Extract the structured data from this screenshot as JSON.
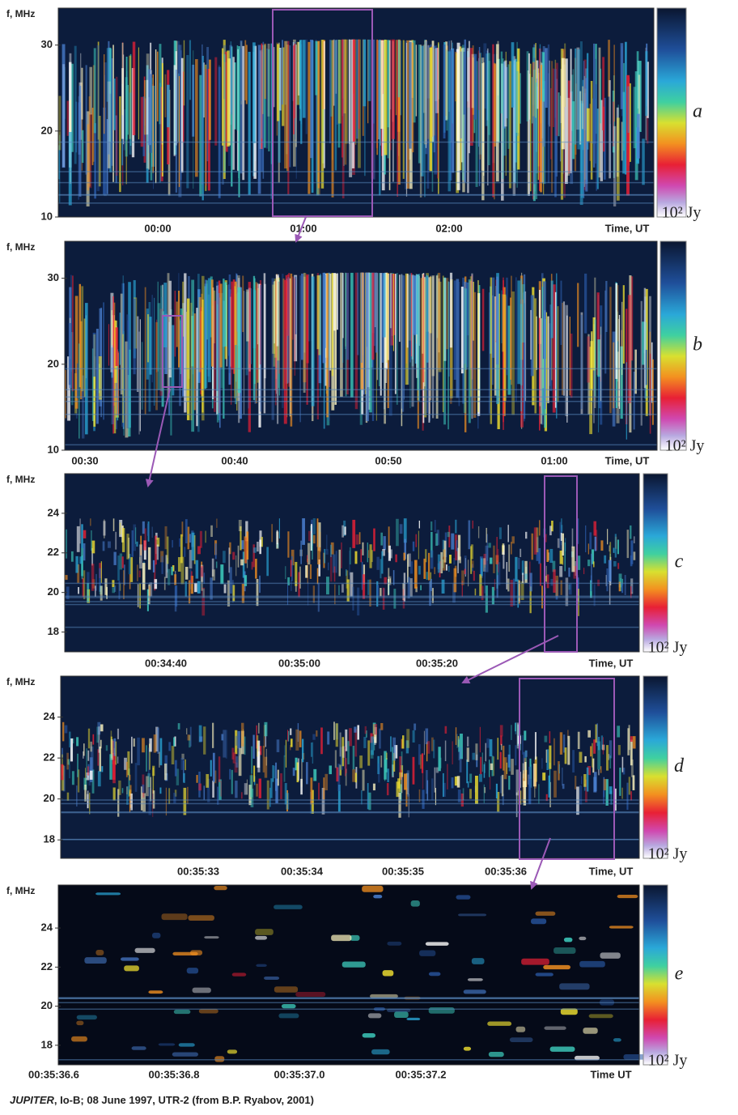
{
  "chart_data": [
    {
      "type": "spectrogram",
      "panel_label": "a",
      "y_label": "f, MHz",
      "ylim": [
        10,
        34.3
      ],
      "yticks": [
        10,
        20,
        30
      ],
      "xticks": [
        "00:00",
        "01:00",
        "02:00"
      ],
      "x_label": "Time, UT",
      "colorbar_label": "10² Jy"
    },
    {
      "type": "spectrogram",
      "panel_label": "b",
      "y_label": "f, MHz",
      "ylim": [
        10,
        34.3
      ],
      "yticks": [
        10,
        20,
        30
      ],
      "xticks": [
        "00:30",
        "00:40",
        "00:50",
        "01:00"
      ],
      "x_label": "Time, UT",
      "colorbar_label": "10² Jy"
    },
    {
      "type": "spectrogram",
      "panel_label": "c",
      "y_label": "f, MHz",
      "ylim": [
        17,
        26
      ],
      "yticks": [
        18,
        20,
        22,
        24
      ],
      "xticks": [
        "00:34:40",
        "00:35:00",
        "00:35:20"
      ],
      "x_label": "Time, UT",
      "colorbar_label": "10² Jy"
    },
    {
      "type": "spectrogram",
      "panel_label": "d",
      "y_label": "f, MHz",
      "ylim": [
        17.1,
        26
      ],
      "yticks": [
        18,
        20,
        22,
        24
      ],
      "xticks": [
        "00:35:33",
        "00:35:34",
        "00:35:35",
        "00:35:36"
      ],
      "x_label": "Time, UT",
      "colorbar_label": "10² Jy"
    },
    {
      "type": "spectrogram",
      "panel_label": "e",
      "y_label": "f, MHz",
      "ylim": [
        17,
        26.2
      ],
      "yticks": [
        18,
        20,
        22,
        24
      ],
      "xticks": [
        "00:35:36.6",
        "00:35:36.8",
        "00:35:37.0",
        "00:35:37.2"
      ],
      "x_label": "Time UT",
      "colorbar_label": "10² Jy"
    }
  ],
  "caption": {
    "bold": "JUPITER",
    "rest": ", Io-B;  08 June 1997, UTR-2 (from B.P. Ryabov, 2001)"
  }
}
